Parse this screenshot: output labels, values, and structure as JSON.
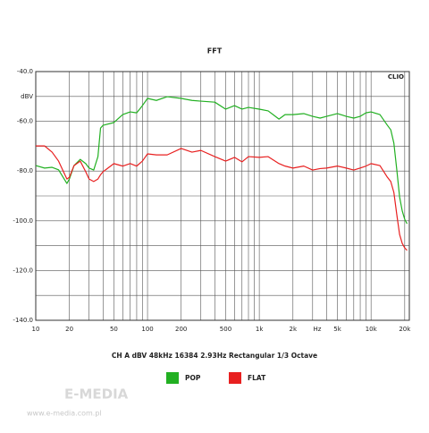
{
  "chart_data": {
    "type": "line",
    "title": "FFT",
    "brand_label": "CLIO",
    "y_label": "dBV",
    "x_unit": "Hz",
    "footer": "CH A  dBV  48kHz  16384  2.93Hz  Rectangular  1/3 Octave",
    "x_scale": "log",
    "grid": true,
    "xlim": [
      10,
      22000
    ],
    "ylim": [
      -140,
      -40
    ],
    "yticks": [
      {
        "value": -40,
        "label": "-40.0"
      },
      {
        "value": -50,
        "label": null
      },
      {
        "value": -60,
        "label": "-60.0"
      },
      {
        "value": -70,
        "label": null
      },
      {
        "value": -80,
        "label": "-80.0"
      },
      {
        "value": -90,
        "label": null
      },
      {
        "value": -100,
        "label": "-100.0"
      },
      {
        "value": -110,
        "label": null
      },
      {
        "value": -120,
        "label": "-120.0"
      },
      {
        "value": -130,
        "label": null
      },
      {
        "value": -140,
        "label": "-140.0"
      }
    ],
    "xticks": [
      10,
      20,
      {
        "value": 30,
        "label": null
      },
      {
        "value": 40,
        "label": null
      },
      50,
      {
        "value": 60,
        "label": null
      },
      {
        "value": 70,
        "label": null
      },
      {
        "value": 80,
        "label": null
      },
      {
        "value": 90,
        "label": null
      },
      100,
      200,
      {
        "value": 300,
        "label": null
      },
      {
        "value": 400,
        "label": null
      },
      500,
      {
        "value": 600,
        "label": null
      },
      {
        "value": 700,
        "label": null
      },
      {
        "value": 800,
        "label": null
      },
      {
        "value": 900,
        "label": null
      },
      {
        "value": 1000,
        "label": "1k"
      },
      {
        "value": 2000,
        "label": "2k"
      },
      {
        "value": 3000,
        "label": null
      },
      {
        "value": 4000,
        "label": null
      },
      {
        "value": 5000,
        "label": "5k"
      },
      {
        "value": 6000,
        "label": null
      },
      {
        "value": 7000,
        "label": null
      },
      {
        "value": 8000,
        "label": null
      },
      {
        "value": 9000,
        "label": null
      },
      {
        "value": 10000,
        "label": "10k"
      },
      {
        "value": 20000,
        "label": "20k"
      }
    ],
    "x": [
      10,
      12,
      14,
      16,
      19,
      20,
      22,
      25,
      28,
      30,
      33,
      36,
      38,
      40,
      50,
      60,
      70,
      80,
      90,
      100,
      120,
      150,
      200,
      250,
      300,
      400,
      500,
      600,
      700,
      800,
      1000,
      1200,
      1500,
      1700,
      2000,
      2500,
      3000,
      3500,
      4000,
      5000,
      6000,
      7000,
      8000,
      9000,
      10000,
      12000,
      14000,
      15000,
      16000,
      17000,
      18000,
      19000,
      20000,
      21000
    ],
    "series": [
      {
        "name": "POP",
        "color": "#22b022",
        "values": [
          -77.8,
          -78.8,
          -78.5,
          -79.5,
          -85,
          -83.2,
          -77.8,
          -75.3,
          -77,
          -78.8,
          -79.6,
          -74.2,
          -62.7,
          -61.6,
          -60.5,
          -57.3,
          -56.2,
          -56.6,
          -53.7,
          -50.8,
          -51.6,
          -50.1,
          -50.8,
          -51.6,
          -51.9,
          -52.3,
          -55.1,
          -53.7,
          -55.1,
          -54.4,
          -55.1,
          -55.8,
          -59.1,
          -57.3,
          -57.3,
          -56.9,
          -58,
          -58.7,
          -58,
          -56.9,
          -58,
          -58.7,
          -58,
          -56.6,
          -56.2,
          -57.3,
          -61.6,
          -63.4,
          -68.8,
          -79.6,
          -90.4,
          -96,
          -99.4,
          -101.2
        ]
      },
      {
        "name": "FLAT",
        "color": "#e82020",
        "values": [
          -69.9,
          -69.9,
          -72.4,
          -76,
          -83.2,
          -82.5,
          -77.8,
          -76,
          -80.3,
          -83.2,
          -84.2,
          -83.2,
          -81.5,
          -80.3,
          -77,
          -78,
          -77,
          -78,
          -76,
          -73.1,
          -73.5,
          -73.5,
          -70.9,
          -72.4,
          -71.7,
          -74.2,
          -76,
          -74.5,
          -76.3,
          -74.2,
          -74.5,
          -74.2,
          -77,
          -78,
          -78.8,
          -78,
          -79.6,
          -79,
          -78.8,
          -78,
          -78.8,
          -79.6,
          -78.8,
          -78,
          -77,
          -77.8,
          -82.5,
          -84.2,
          -88.6,
          -97.6,
          -105.5,
          -109.1,
          -110.9,
          -111.9
        ]
      }
    ]
  },
  "watermark": {
    "brand": "E-MEDIA",
    "url": "www.e-media.com.pl"
  }
}
